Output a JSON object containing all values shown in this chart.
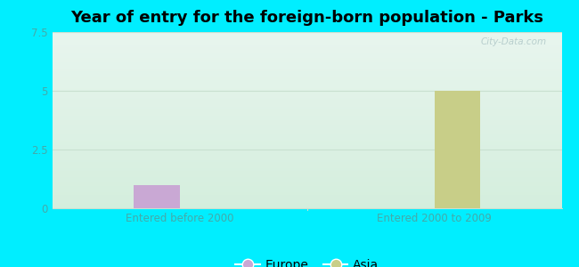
{
  "title": "Year of entry for the foreign-born population - Parks",
  "groups": [
    "Entered before 2000",
    "Entered 2000 to 2009"
  ],
  "series": [
    {
      "label": "Europe",
      "color": "#c9a8d4",
      "values": [
        1,
        0
      ]
    },
    {
      "label": "Asia",
      "color": "#c8ce88",
      "values": [
        0,
        5
      ]
    }
  ],
  "ylim": [
    0,
    7.5
  ],
  "yticks": [
    0,
    2.5,
    5,
    7.5
  ],
  "background_outer": "#00eeff",
  "gradient_top": "#e8f5ee",
  "gradient_bottom": "#d4eedd",
  "bar_width": 0.18,
  "title_fontsize": 13,
  "tick_fontsize": 8.5,
  "legend_fontsize": 10,
  "watermark": "City-Data.com",
  "axis_color": "#44aaaa",
  "grid_color": "#c8e0d0"
}
